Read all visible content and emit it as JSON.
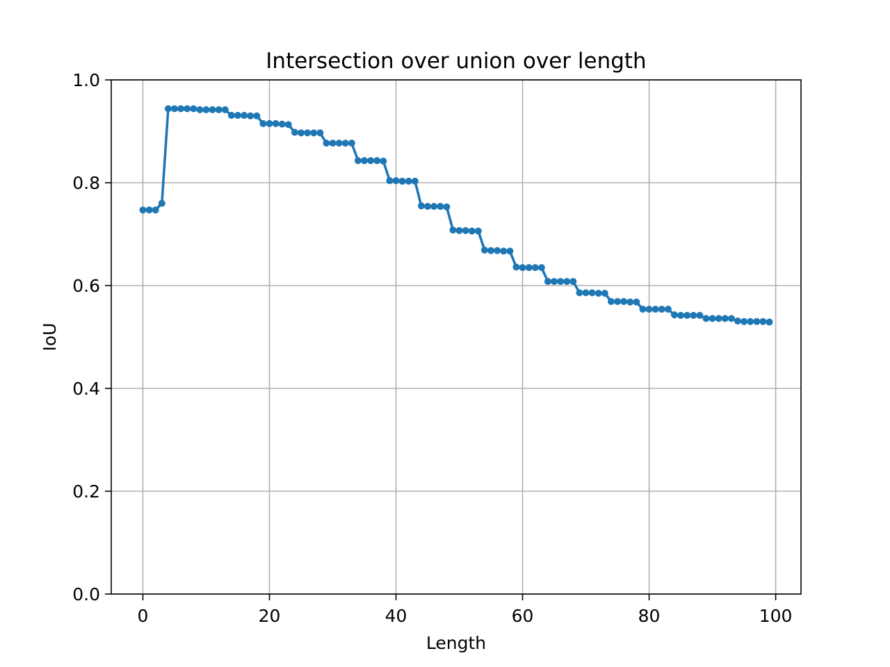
{
  "chart_data": {
    "type": "line",
    "title": "Intersection over union over length",
    "xlabel": "Length",
    "ylabel": "IoU",
    "xlim": [
      -5,
      104
    ],
    "ylim": [
      0,
      1.0
    ],
    "xticks": [
      0,
      20,
      40,
      60,
      80,
      100
    ],
    "xtick_labels": [
      "0",
      "20",
      "40",
      "60",
      "80",
      "100"
    ],
    "yticks": [
      0.0,
      0.2,
      0.4,
      0.6,
      0.8,
      1.0
    ],
    "ytick_labels": [
      "0.0",
      "0.2",
      "0.4",
      "0.6",
      "0.8",
      "1.0"
    ],
    "grid": true,
    "series_color": "#1f77b4",
    "grid_color": "#b0b0b0",
    "marker": "circle",
    "x": [
      0,
      1,
      2,
      3,
      4,
      5,
      6,
      7,
      8,
      9,
      10,
      11,
      12,
      13,
      14,
      15,
      16,
      17,
      18,
      19,
      20,
      21,
      22,
      23,
      24,
      25,
      26,
      27,
      28,
      29,
      30,
      31,
      32,
      33,
      34,
      35,
      36,
      37,
      38,
      39,
      40,
      41,
      42,
      43,
      44,
      45,
      46,
      47,
      48,
      49,
      50,
      51,
      52,
      53,
      54,
      55,
      56,
      57,
      58,
      59,
      60,
      61,
      62,
      63,
      64,
      65,
      66,
      67,
      68,
      69,
      70,
      71,
      72,
      73,
      74,
      75,
      76,
      77,
      78,
      79,
      80,
      81,
      82,
      83,
      84,
      85,
      86,
      87,
      88,
      89,
      90,
      91,
      92,
      93,
      94,
      95,
      96,
      97,
      98,
      99
    ],
    "y": [
      0.747,
      0.747,
      0.747,
      0.76,
      0.944,
      0.944,
      0.944,
      0.944,
      0.944,
      0.942,
      0.942,
      0.942,
      0.942,
      0.942,
      0.931,
      0.931,
      0.931,
      0.93,
      0.93,
      0.915,
      0.915,
      0.915,
      0.914,
      0.913,
      0.898,
      0.897,
      0.897,
      0.897,
      0.897,
      0.877,
      0.877,
      0.877,
      0.877,
      0.877,
      0.843,
      0.843,
      0.843,
      0.843,
      0.842,
      0.804,
      0.804,
      0.803,
      0.803,
      0.803,
      0.755,
      0.754,
      0.754,
      0.754,
      0.753,
      0.708,
      0.707,
      0.707,
      0.706,
      0.706,
      0.669,
      0.668,
      0.668,
      0.667,
      0.667,
      0.636,
      0.635,
      0.635,
      0.635,
      0.635,
      0.608,
      0.608,
      0.608,
      0.608,
      0.608,
      0.586,
      0.586,
      0.586,
      0.585,
      0.585,
      0.569,
      0.569,
      0.569,
      0.568,
      0.568,
      0.554,
      0.554,
      0.554,
      0.554,
      0.554,
      0.543,
      0.542,
      0.542,
      0.542,
      0.542,
      0.536,
      0.536,
      0.536,
      0.536,
      0.536,
      0.531,
      0.53,
      0.53,
      0.53,
      0.53,
      0.529
    ]
  }
}
